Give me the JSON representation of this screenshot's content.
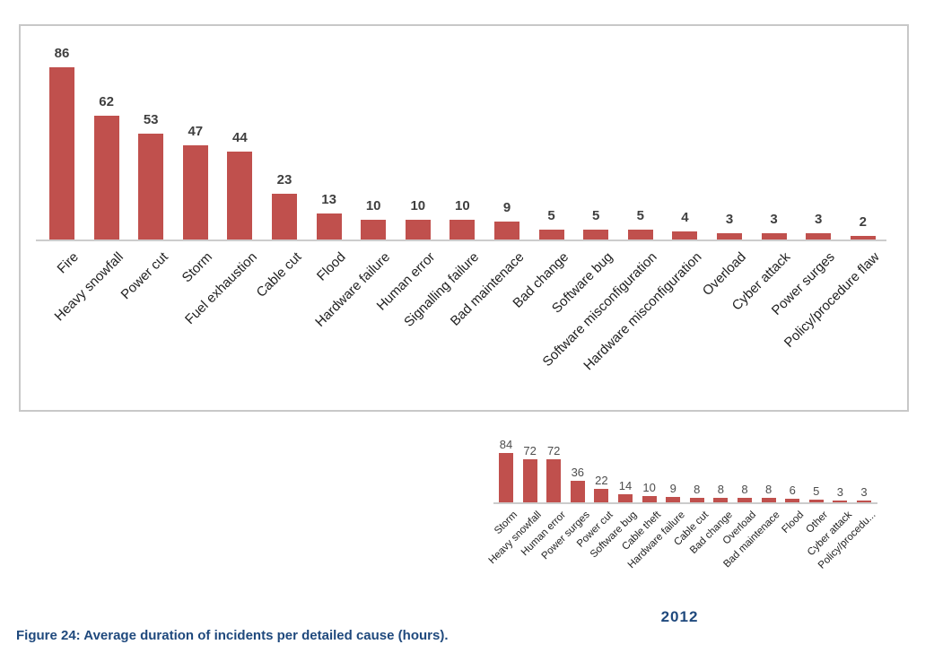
{
  "page": {
    "caption": "Figure 24: Average duration of incidents per detailed cause (hours)."
  },
  "colors": {
    "bar": "#c0504d",
    "box_border": "#c8c8c8",
    "axis_line": "#cccccc",
    "value_label_top": "#3f3f3f",
    "value_label_bottom": "#4d4d4d",
    "x_label": "#1f1f1f",
    "caption_blue": "#1f497d"
  },
  "chart_data": [
    {
      "type": "bar",
      "title": "",
      "categories": [
        "Fire",
        "Heavy snowfall",
        "Power cut",
        "Storm",
        "Fuel exhaustion",
        "Cable cut",
        "Flood",
        "Hardware failure",
        "Human error",
        "Signalling failure",
        "Bad maintenace",
        "Bad change",
        "Software bug",
        "Software misconfiguration",
        "Hardware misconfiguration",
        "Overload",
        "Cyber attack",
        "Power surges",
        "Policy/procedure flaw"
      ],
      "values": [
        86,
        62,
        53,
        47,
        44,
        23,
        13,
        10,
        10,
        10,
        9,
        5,
        5,
        5,
        4,
        3,
        3,
        3,
        2
      ],
      "xlabel": "",
      "ylabel": "",
      "ylim": [
        0,
        90
      ],
      "grid": false,
      "legend": false,
      "value_labels": true,
      "bar_color": "#c0504d",
      "x_tick_rotation": 45
    },
    {
      "type": "bar",
      "title": "2012",
      "categories": [
        "Storm",
        "Heavy snowfall",
        "Human error",
        "Power surges",
        "Power cut",
        "Software bug",
        "Cable theft",
        "Hardware failure",
        "Cable cut",
        "Bad change",
        "Overload",
        "Bad maintenace",
        "Flood",
        "Other",
        "Cyber attack",
        "Policy/procedu..."
      ],
      "values": [
        84,
        72,
        72,
        36,
        22,
        14,
        10,
        9,
        8,
        8,
        8,
        8,
        6,
        5,
        3,
        3
      ],
      "xlabel": "",
      "ylabel": "",
      "ylim": [
        0,
        90
      ],
      "grid": false,
      "legend": false,
      "value_labels": true,
      "bar_color": "#c0504d",
      "x_tick_rotation": 45
    }
  ]
}
